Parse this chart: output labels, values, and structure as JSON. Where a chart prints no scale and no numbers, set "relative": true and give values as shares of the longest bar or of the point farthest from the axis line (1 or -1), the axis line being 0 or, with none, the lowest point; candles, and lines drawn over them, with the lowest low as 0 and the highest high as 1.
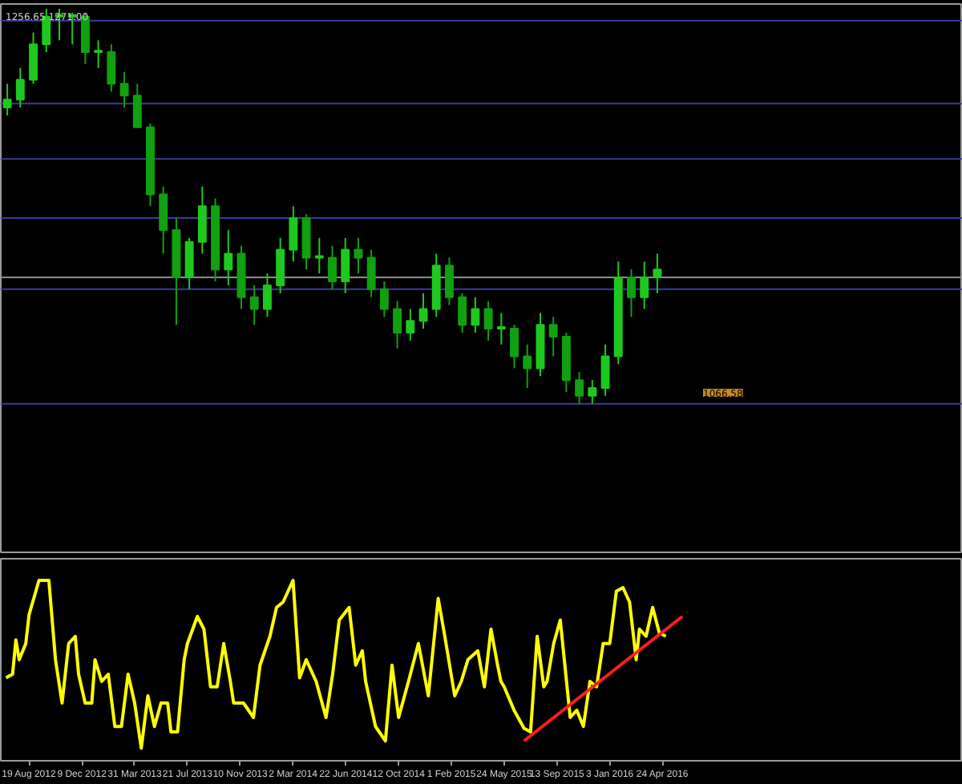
{
  "chart_data": [
    {
      "type": "candlestick",
      "relative": true,
      "colors": [
        "#1ec81e",
        "#1ec81e",
        "#1ec81e",
        "#1ec81e",
        "#1ec81e",
        "#1ec81e",
        "#10a010",
        "#1ec81e",
        "#10a010",
        "#10a010",
        "#10a010",
        "#10a010",
        "#10a010",
        "#10a010",
        "#1ec81e",
        "#1ec81e",
        "#10a010",
        "#1ec81e",
        "#10a010",
        "#10a010",
        "#1ec81e",
        "#1ec81e",
        "#1ec81e",
        "#10a010",
        "#1ec81e",
        "#10a010",
        "#1ec81e",
        "#10a010",
        "#10a010",
        "#10a010",
        "#10a010",
        "#1ec81e",
        "#1ec81e",
        "#1ec81e",
        "#10a010",
        "#10a010",
        "#1ec81e",
        "#10a010",
        "#1ec81e",
        "#10a010",
        "#10a010",
        "#1ec81e",
        "#10a010",
        "#10a010",
        "#10a010",
        "#1ec81e",
        "#1ec81e",
        "#1ec81e",
        "#10a010",
        "#1ec81e",
        "#1ec81e",
        null,
        null,
        null,
        null,
        null,
        null,
        null,
        null,
        null,
        null,
        null,
        null,
        null,
        null,
        null,
        null,
        null,
        null,
        null,
        null,
        null,
        null,
        null
      ],
      "tick_labels": false,
      "categories": [
        null,
        null,
        null,
        null,
        null,
        null,
        null,
        null,
        null,
        null,
        null,
        null,
        null,
        null,
        null,
        null,
        null,
        null,
        null,
        null,
        null,
        null,
        null,
        null,
        null,
        null,
        null,
        null,
        null,
        null,
        null,
        null,
        null,
        null,
        null,
        null,
        null,
        null,
        null,
        null,
        null,
        null,
        null,
        null,
        null,
        null,
        null,
        null,
        null,
        null,
        null,
        null,
        null,
        null,
        null,
        null,
        null,
        null,
        null,
        null,
        null,
        null,
        null,
        null,
        null,
        null,
        null,
        null,
        null,
        null,
        null,
        null,
        null,
        null
      ],
      "ohlc": [
        [
          0.75,
          0.81,
          0.73,
          0.77
        ],
        [
          0.77,
          0.85,
          0.75,
          0.82
        ],
        [
          0.82,
          0.94,
          0.81,
          0.91
        ],
        [
          0.91,
          1.0,
          0.89,
          0.98
        ],
        [
          0.98,
          1.0,
          0.92,
          0.98
        ],
        [
          0.98,
          0.99,
          0.91,
          0.98
        ],
        [
          0.98,
          0.99,
          0.86,
          0.89
        ],
        [
          0.89,
          0.92,
          0.85,
          0.89
        ],
        [
          0.89,
          0.91,
          0.79,
          0.81
        ],
        [
          0.81,
          0.84,
          0.75,
          0.78
        ],
        [
          0.78,
          0.81,
          0.7,
          0.7
        ],
        [
          0.7,
          0.71,
          0.5,
          0.53
        ],
        [
          0.53,
          0.55,
          0.38,
          0.44
        ],
        [
          0.44,
          0.47,
          0.2,
          0.32
        ],
        [
          0.32,
          0.42,
          0.29,
          0.41
        ],
        [
          0.41,
          0.55,
          0.38,
          0.5
        ],
        [
          0.5,
          0.52,
          0.31,
          0.34
        ],
        [
          0.34,
          0.44,
          0.3,
          0.38
        ],
        [
          0.38,
          0.4,
          0.24,
          0.27
        ],
        [
          0.27,
          0.3,
          0.2,
          0.24
        ],
        [
          0.24,
          0.33,
          0.22,
          0.3
        ],
        [
          0.3,
          0.42,
          0.28,
          0.39
        ],
        [
          0.39,
          0.5,
          0.36,
          0.47
        ],
        [
          0.47,
          0.48,
          0.34,
          0.37
        ],
        [
          0.37,
          0.42,
          0.33,
          0.37
        ],
        [
          0.37,
          0.4,
          0.29,
          0.31
        ],
        [
          0.31,
          0.42,
          0.28,
          0.39
        ],
        [
          0.39,
          0.42,
          0.33,
          0.37
        ],
        [
          0.37,
          0.39,
          0.27,
          0.29
        ],
        [
          0.29,
          0.31,
          0.22,
          0.24
        ],
        [
          0.24,
          0.26,
          0.14,
          0.18
        ],
        [
          0.18,
          0.24,
          0.16,
          0.21
        ],
        [
          0.21,
          0.28,
          0.19,
          0.24
        ],
        [
          0.24,
          0.38,
          0.22,
          0.35
        ],
        [
          0.35,
          0.37,
          0.25,
          0.27
        ],
        [
          0.27,
          0.28,
          0.18,
          0.2
        ],
        [
          0.2,
          0.27,
          0.18,
          0.24
        ],
        [
          0.24,
          0.26,
          0.16,
          0.19
        ],
        [
          0.19,
          0.23,
          0.15,
          0.19
        ],
        [
          0.19,
          0.2,
          0.09,
          0.12
        ],
        [
          0.12,
          0.15,
          0.04,
          0.09
        ],
        [
          0.09,
          0.23,
          0.07,
          0.2
        ],
        [
          0.2,
          0.22,
          0.12,
          0.17
        ],
        [
          0.17,
          0.18,
          0.03,
          0.06
        ],
        [
          0.06,
          0.08,
          0.0,
          0.02
        ],
        [
          0.02,
          0.06,
          0.0,
          0.04
        ],
        [
          0.04,
          0.15,
          0.02,
          0.12
        ],
        [
          0.12,
          0.36,
          0.1,
          0.32
        ],
        [
          0.32,
          0.34,
          0.22,
          0.27
        ],
        [
          0.27,
          0.36,
          0.24,
          0.32
        ],
        [
          0.32,
          0.38,
          0.28,
          0.34
        ],
        null,
        null,
        null,
        null,
        null,
        null,
        null,
        null,
        null,
        null,
        null,
        null,
        null,
        null,
        null,
        null,
        null,
        null,
        null,
        null,
        null,
        null,
        null
      ],
      "ref_lines": [
        {
          "axis": "y",
          "value": 0.97,
          "color": "#3c3c9c"
        },
        {
          "axis": "y",
          "value": 0.76,
          "color": "#3c3c9c"
        },
        {
          "axis": "y",
          "value": 0.62,
          "color": "#3c3c9c"
        },
        {
          "axis": "y",
          "value": 0.47,
          "color": "#3c3c9c"
        },
        {
          "axis": "y",
          "value": 0.32,
          "color": "#8c8c8c"
        },
        {
          "axis": "y",
          "value": 0.29,
          "color": "#3c3c9c"
        },
        {
          "axis": "y",
          "value": 0.0,
          "color": "#3c3c9c"
        }
      ],
      "annotations": [
        "1256.65 1271.00",
        "1066.58"
      ]
    },
    {
      "type": "line",
      "relative": true,
      "tick_labels": "x",
      "xlim": [
        "2012-06-20",
        "2018-01-21"
      ],
      "xticks": [
        {
          "value": "2012-08-19",
          "label": "19 Aug 2012"
        },
        {
          "value": "2012-12-09",
          "label": "9 Dec 2012"
        },
        {
          "value": "2013-03-31",
          "label": "31 Mar 2013"
        },
        {
          "value": "2013-07-21",
          "label": "21 Jul 2013"
        },
        {
          "value": "2013-11-10",
          "label": "10 Nov 2013"
        },
        {
          "value": "2014-03-02",
          "label": "2 Mar 2014"
        },
        {
          "value": "2014-06-22",
          "label": "22 Jun 2014"
        },
        {
          "value": "2014-10-12",
          "label": "12 Oct 2014"
        },
        {
          "value": "2015-02-01",
          "label": "1 Feb 2015"
        },
        {
          "value": "2015-05-24",
          "label": "24 May 2015"
        },
        {
          "value": "2015-09-13",
          "label": "13 Sep 2015"
        },
        {
          "value": "2016-01-03",
          "label": "3 Jan 2016"
        },
        {
          "value": "2016-04-24",
          "label": "24 Apr 2016"
        }
      ],
      "series": [
        {
          "color": "#ffff00",
          "x": [
            "2012-07-01",
            "2012-07-15",
            "2012-07-22",
            "2012-07-29",
            "2012-08-12",
            "2012-08-19",
            "2012-09-09",
            "2012-09-30",
            "2012-10-14",
            "2012-10-28",
            "2012-11-11",
            "2012-11-25",
            "2012-12-02",
            "2012-12-16",
            "2012-12-30",
            "2013-01-06",
            "2013-01-20",
            "2013-02-03",
            "2013-02-17",
            "2013-03-03",
            "2013-03-17",
            "2013-03-31",
            "2013-04-14",
            "2013-04-28",
            "2013-05-12",
            "2013-05-26",
            "2013-06-09",
            "2013-06-16",
            "2013-06-30",
            "2013-07-14",
            "2013-07-21",
            "2013-08-11",
            "2013-08-25",
            "2013-09-08",
            "2013-09-22",
            "2013-10-06",
            "2013-10-20",
            "2013-10-27",
            "2013-11-17",
            "2013-12-08",
            "2013-12-22",
            "2014-01-12",
            "2014-01-26",
            "2014-02-09",
            "2014-03-02",
            "2014-03-16",
            "2014-03-30",
            "2014-04-20",
            "2014-05-11",
            "2014-05-25",
            "2014-06-08",
            "2014-06-29",
            "2014-07-13",
            "2014-07-27",
            "2014-08-03",
            "2014-08-24",
            "2014-09-14",
            "2014-09-28",
            "2014-10-12",
            "2014-11-02",
            "2014-11-23",
            "2014-12-14",
            "2015-01-04",
            "2015-01-18",
            "2015-02-08",
            "2015-02-22",
            "2015-03-08",
            "2015-03-29",
            "2015-04-12",
            "2015-04-26",
            "2015-05-10",
            "2015-05-17",
            "2015-05-24",
            "2015-06-14",
            "2015-07-05",
            "2015-07-19",
            "2015-08-02",
            "2015-08-16",
            "2015-08-23",
            "2015-09-06",
            "2015-09-20",
            "2015-10-11",
            "2015-10-25",
            "2015-11-08",
            "2015-11-22",
            "2015-12-06",
            "2015-12-20",
            "2016-01-03",
            "2016-01-17",
            "2016-01-31",
            "2016-02-14",
            "2016-02-28",
            "2016-03-06",
            "2016-03-20",
            "2016-04-03",
            "2016-04-17",
            "2016-05-01"
          ],
          "values": [
            0.46,
            0.48,
            0.67,
            0.56,
            0.65,
            0.81,
            1.0,
            1.0,
            0.56,
            0.32,
            0.65,
            0.69,
            0.48,
            0.32,
            0.32,
            0.56,
            0.44,
            0.48,
            0.19,
            0.19,
            0.48,
            0.32,
            0.07,
            0.36,
            0.19,
            0.32,
            0.32,
            0.16,
            0.16,
            0.56,
            0.65,
            0.8,
            0.73,
            0.41,
            0.41,
            0.65,
            0.44,
            0.32,
            0.32,
            0.24,
            0.53,
            0.69,
            0.85,
            0.88,
            1.0,
            0.46,
            0.56,
            0.44,
            0.24,
            0.48,
            0.78,
            0.85,
            0.53,
            0.61,
            0.44,
            0.19,
            0.11,
            0.53,
            0.24,
            0.44,
            0.65,
            0.36,
            0.9,
            0.69,
            0.36,
            0.44,
            0.56,
            0.61,
            0.41,
            0.73,
            0.53,
            0.44,
            0.41,
            0.28,
            0.18,
            0.16,
            0.69,
            0.41,
            0.44,
            0.65,
            0.78,
            0.24,
            0.28,
            0.19,
            0.44,
            0.41,
            0.65,
            0.65,
            0.94,
            0.96,
            0.88,
            0.56,
            0.73,
            0.69,
            0.85,
            0.71,
            0.69
          ]
        },
        {
          "color": "#ff1e1e",
          "x": [
            "2015-07-05",
            "2016-06-05"
          ],
          "values": [
            0.11,
            0.8
          ]
        }
      ]
    }
  ]
}
